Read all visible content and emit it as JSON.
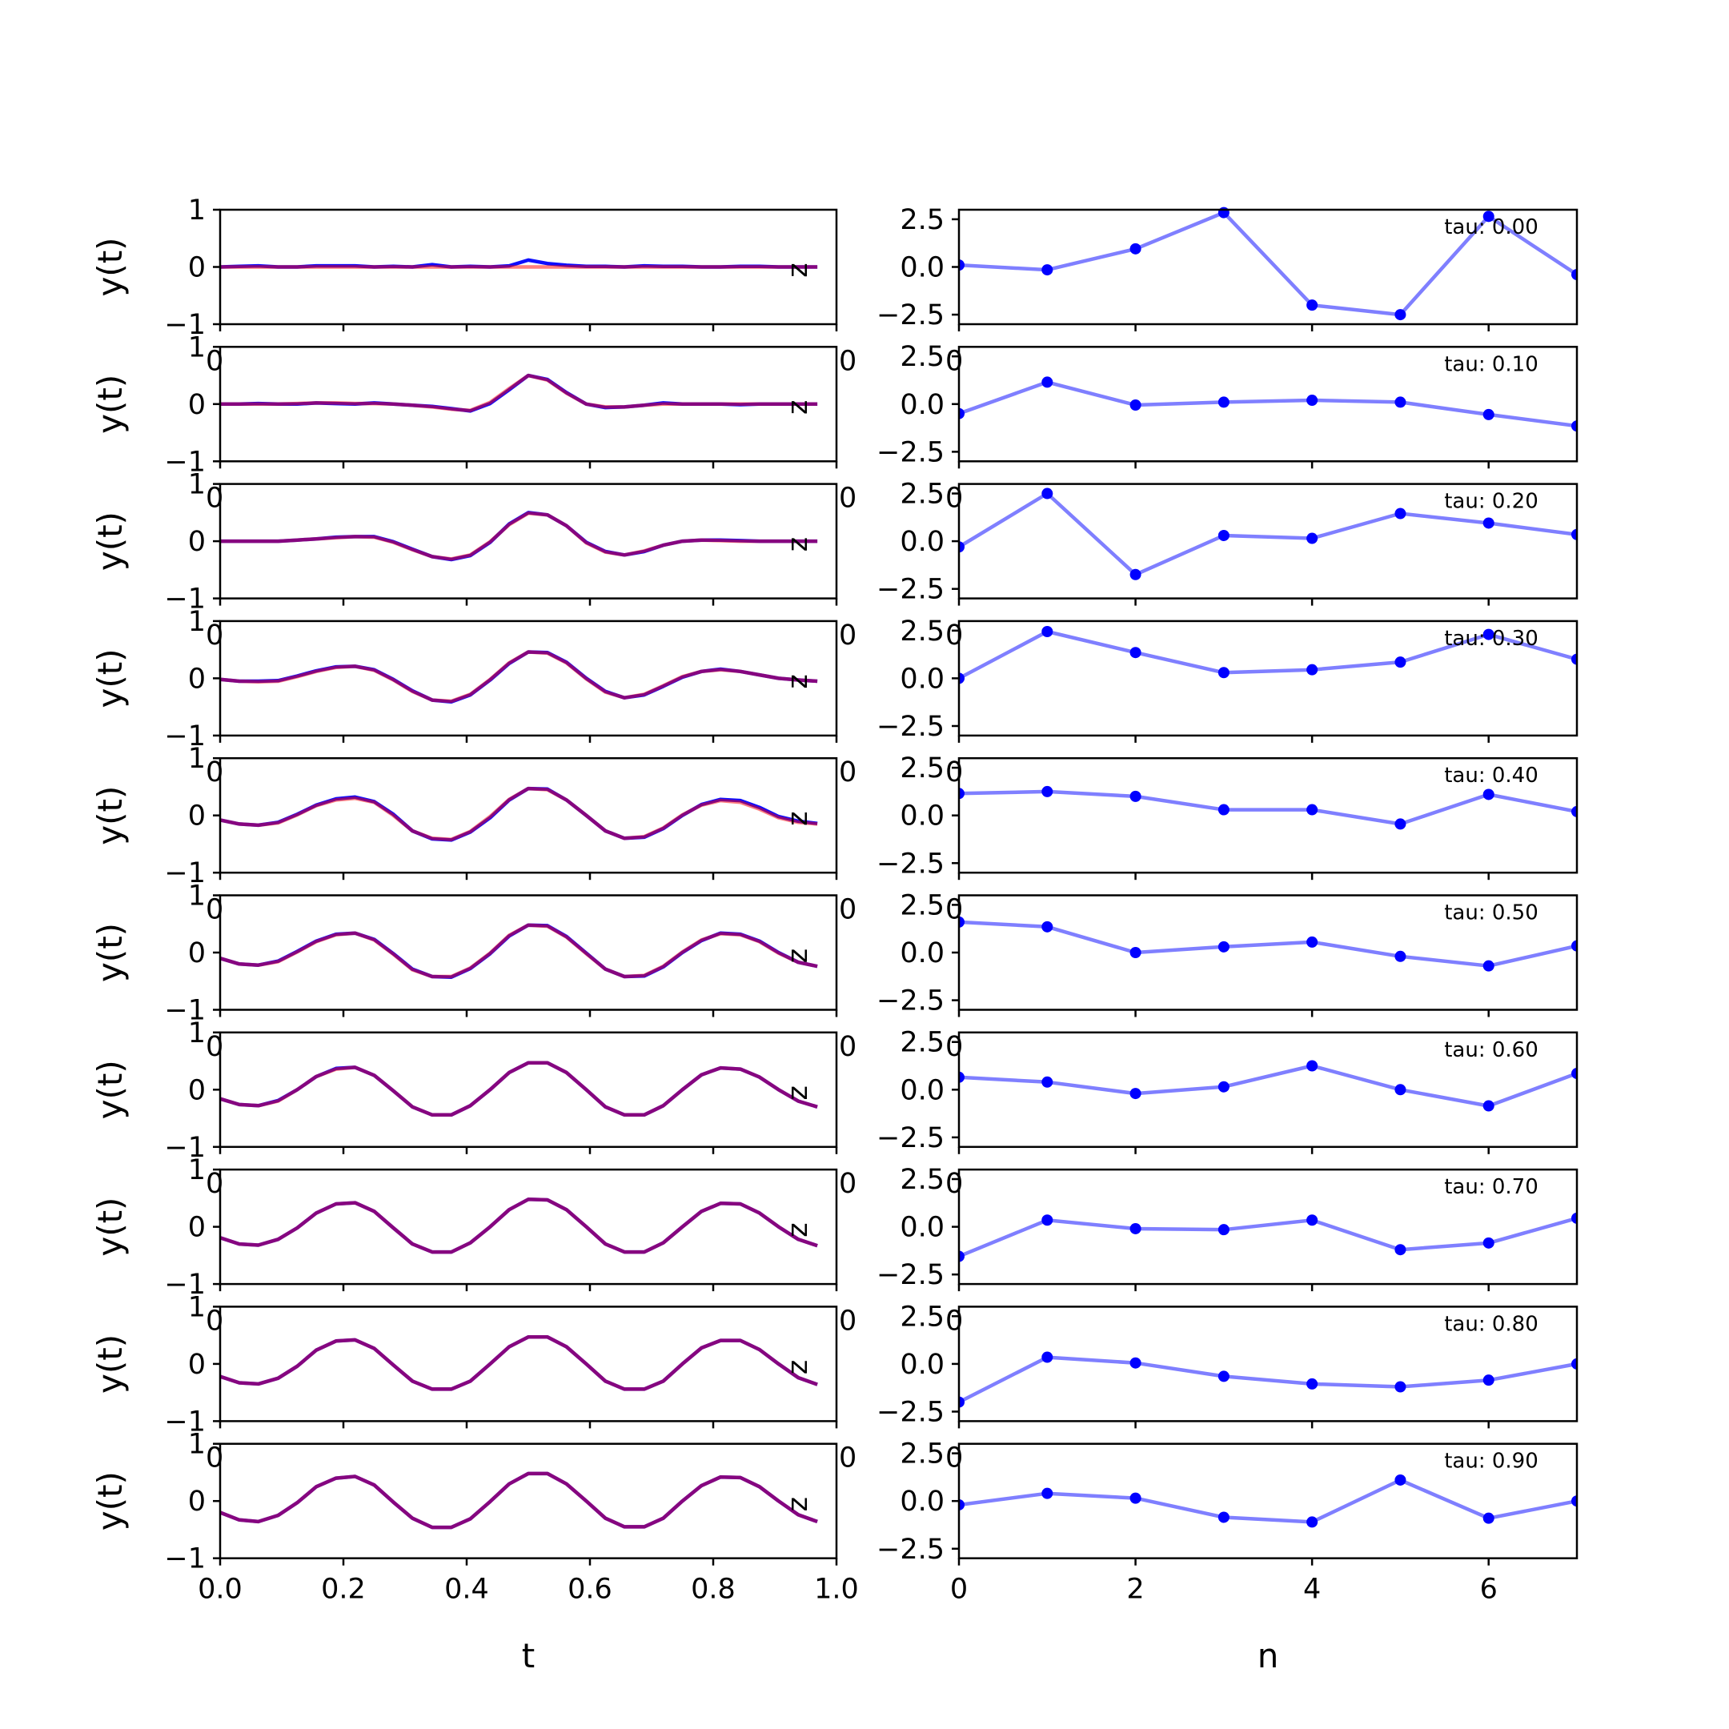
{
  "chart_data": [
    {
      "type": "line",
      "panel": "left-column",
      "xlabel": "t",
      "ylabel": "y(t)",
      "xlim": [
        0,
        1
      ],
      "ylim": [
        -1,
        1
      ],
      "xticks": [
        "0.0",
        "0.2",
        "0.4",
        "0.6",
        "0.8",
        "1.0"
      ],
      "yticks": [
        "−1",
        "0",
        "1"
      ],
      "stray_labels": [
        "0",
        "0",
        "z"
      ],
      "series_colors": [
        "#0000ff",
        "#ff0000"
      ],
      "x": [
        0.0,
        0.031,
        0.062,
        0.094,
        0.125,
        0.156,
        0.188,
        0.219,
        0.25,
        0.281,
        0.312,
        0.344,
        0.375,
        0.406,
        0.438,
        0.469,
        0.5,
        0.531,
        0.562,
        0.594,
        0.625,
        0.656,
        0.688,
        0.719,
        0.75,
        0.781,
        0.812,
        0.844,
        0.875,
        0.906,
        0.938,
        0.969
      ],
      "rows": [
        {
          "series": [
            {
              "values": [
                0.0,
                0.01,
                0.02,
                0.0,
                0.0,
                0.02,
                0.02,
                0.02,
                0.0,
                0.01,
                0.0,
                0.04,
                0.0,
                0.01,
                0.0,
                0.02,
                0.12,
                0.06,
                0.03,
                0.01,
                0.01,
                0.0,
                0.02,
                0.01,
                0.01,
                0.0,
                0.0,
                0.01,
                0.01,
                0.0,
                0.0,
                0.0
              ]
            },
            {
              "values": [
                0.0,
                0.0,
                0.0,
                0.0,
                0.0,
                0.0,
                0.0,
                0.0,
                0.0,
                0.0,
                0.0,
                0.0,
                0.0,
                0.0,
                0.0,
                0.0,
                0.0,
                0.0,
                0.0,
                0.0,
                0.0,
                0.0,
                0.0,
                0.0,
                0.0,
                0.0,
                0.0,
                0.0,
                0.0,
                0.0,
                0.0,
                0.0
              ]
            }
          ]
        },
        {
          "series": [
            {
              "values": [
                0.0,
                0.0,
                0.01,
                0.0,
                0.0,
                0.02,
                0.01,
                0.0,
                0.02,
                0.0,
                -0.02,
                -0.04,
                -0.08,
                -0.12,
                0.01,
                0.25,
                0.5,
                0.43,
                0.2,
                0.0,
                -0.06,
                -0.05,
                -0.02,
                0.02,
                0.0,
                0.0,
                0.0,
                -0.01,
                0.0,
                0.0,
                0.0,
                0.0
              ]
            },
            {
              "values": [
                0.0,
                0.0,
                0.0,
                0.0,
                0.01,
                0.02,
                0.02,
                0.01,
                0.01,
                0.0,
                -0.02,
                -0.05,
                -0.09,
                -0.11,
                0.03,
                0.27,
                0.5,
                0.42,
                0.19,
                0.0,
                -0.05,
                -0.05,
                -0.02,
                0.0,
                0.0,
                0.0,
                0.0,
                0.0,
                0.0,
                0.0,
                0.0,
                0.0
              ]
            }
          ]
        },
        {
          "series": [
            {
              "values": [
                0.0,
                0.0,
                0.0,
                0.0,
                0.02,
                0.04,
                0.07,
                0.08,
                0.08,
                -0.01,
                -0.14,
                -0.27,
                -0.32,
                -0.25,
                -0.02,
                0.3,
                0.5,
                0.46,
                0.27,
                -0.02,
                -0.18,
                -0.24,
                -0.18,
                -0.07,
                0.0,
                0.02,
                0.02,
                0.01,
                0.0,
                0.0,
                0.0,
                0.0
              ]
            },
            {
              "values": [
                0.0,
                0.0,
                0.0,
                0.0,
                0.02,
                0.04,
                0.06,
                0.08,
                0.07,
                -0.02,
                -0.15,
                -0.27,
                -0.31,
                -0.24,
                -0.01,
                0.29,
                0.49,
                0.46,
                0.27,
                -0.03,
                -0.19,
                -0.24,
                -0.17,
                -0.07,
                0.0,
                0.02,
                0.01,
                0.0,
                0.0,
                0.0,
                0.0,
                0.0
              ]
            }
          ]
        },
        {
          "series": [
            {
              "values": [
                -0.02,
                -0.05,
                -0.05,
                -0.04,
                0.04,
                0.13,
                0.2,
                0.21,
                0.15,
                -0.02,
                -0.22,
                -0.38,
                -0.41,
                -0.29,
                -0.03,
                0.26,
                0.46,
                0.45,
                0.28,
                0.0,
                -0.23,
                -0.34,
                -0.29,
                -0.14,
                0.02,
                0.12,
                0.16,
                0.12,
                0.06,
                0.0,
                -0.03,
                -0.05
              ]
            },
            {
              "values": [
                -0.02,
                -0.05,
                -0.06,
                -0.05,
                0.03,
                0.12,
                0.19,
                0.21,
                0.14,
                -0.03,
                -0.23,
                -0.38,
                -0.4,
                -0.28,
                -0.02,
                0.27,
                0.46,
                0.44,
                0.27,
                -0.01,
                -0.24,
                -0.34,
                -0.28,
                -0.13,
                0.03,
                0.12,
                0.15,
                0.12,
                0.06,
                0.0,
                -0.03,
                -0.05
              ]
            }
          ]
        },
        {
          "series": [
            {
              "values": [
                -0.08,
                -0.15,
                -0.17,
                -0.12,
                0.02,
                0.18,
                0.29,
                0.32,
                0.24,
                0.02,
                -0.27,
                -0.41,
                -0.43,
                -0.29,
                -0.04,
                0.27,
                0.47,
                0.46,
                0.27,
                0.0,
                -0.27,
                -0.4,
                -0.38,
                -0.23,
                0.0,
                0.19,
                0.28,
                0.26,
                0.14,
                -0.02,
                -0.1,
                -0.14
              ]
            },
            {
              "values": [
                -0.08,
                -0.15,
                -0.17,
                -0.13,
                0.01,
                0.17,
                0.27,
                0.3,
                0.23,
                0.0,
                -0.27,
                -0.4,
                -0.42,
                -0.28,
                -0.02,
                0.28,
                0.47,
                0.45,
                0.27,
                0.0,
                -0.27,
                -0.4,
                -0.37,
                -0.22,
                0.01,
                0.18,
                0.26,
                0.23,
                0.11,
                -0.04,
                -0.12,
                -0.15
              ]
            }
          ]
        },
        {
          "series": [
            {
              "values": [
                -0.1,
                -0.2,
                -0.22,
                -0.15,
                0.02,
                0.2,
                0.32,
                0.34,
                0.23,
                -0.02,
                -0.29,
                -0.42,
                -0.43,
                -0.28,
                -0.02,
                0.29,
                0.48,
                0.47,
                0.28,
                -0.01,
                -0.29,
                -0.42,
                -0.41,
                -0.25,
                0.0,
                0.21,
                0.34,
                0.32,
                0.2,
                0.0,
                -0.17,
                -0.24
              ]
            },
            {
              "values": [
                -0.1,
                -0.2,
                -0.22,
                -0.16,
                0.01,
                0.19,
                0.31,
                0.34,
                0.22,
                -0.03,
                -0.3,
                -0.42,
                -0.42,
                -0.27,
                -0.01,
                0.3,
                0.48,
                0.46,
                0.27,
                -0.02,
                -0.29,
                -0.42,
                -0.4,
                -0.24,
                0.01,
                0.22,
                0.33,
                0.31,
                0.19,
                -0.01,
                -0.17,
                -0.24
              ]
            }
          ]
        },
        {
          "series": [
            {
              "values": [
                -0.16,
                -0.26,
                -0.28,
                -0.19,
                0.0,
                0.23,
                0.37,
                0.39,
                0.25,
                -0.02,
                -0.3,
                -0.44,
                -0.44,
                -0.28,
                0.0,
                0.3,
                0.47,
                0.47,
                0.3,
                0.0,
                -0.3,
                -0.44,
                -0.44,
                -0.28,
                0.0,
                0.26,
                0.38,
                0.36,
                0.22,
                0.0,
                -0.2,
                -0.3
              ]
            },
            {
              "values": [
                -0.16,
                -0.26,
                -0.28,
                -0.2,
                0.0,
                0.23,
                0.36,
                0.39,
                0.25,
                -0.02,
                -0.3,
                -0.44,
                -0.44,
                -0.28,
                0.0,
                0.3,
                0.47,
                0.47,
                0.3,
                0.0,
                -0.3,
                -0.44,
                -0.44,
                -0.28,
                0.0,
                0.26,
                0.38,
                0.36,
                0.22,
                0.0,
                -0.2,
                -0.3
              ]
            }
          ]
        },
        {
          "series": [
            {
              "values": [
                -0.19,
                -0.3,
                -0.32,
                -0.22,
                -0.02,
                0.24,
                0.4,
                0.42,
                0.27,
                -0.02,
                -0.3,
                -0.44,
                -0.44,
                -0.28,
                0.0,
                0.3,
                0.48,
                0.47,
                0.3,
                0.0,
                -0.3,
                -0.44,
                -0.44,
                -0.28,
                0.0,
                0.27,
                0.41,
                0.4,
                0.24,
                0.0,
                -0.22,
                -0.33
              ]
            },
            {
              "values": [
                -0.19,
                -0.3,
                -0.32,
                -0.22,
                -0.02,
                0.24,
                0.4,
                0.42,
                0.27,
                -0.02,
                -0.3,
                -0.44,
                -0.44,
                -0.28,
                0.0,
                0.3,
                0.48,
                0.47,
                0.3,
                0.0,
                -0.3,
                -0.44,
                -0.44,
                -0.28,
                0.0,
                0.27,
                0.41,
                0.4,
                0.24,
                0.0,
                -0.22,
                -0.33
              ]
            }
          ]
        },
        {
          "series": [
            {
              "values": [
                -0.22,
                -0.33,
                -0.35,
                -0.25,
                -0.04,
                0.24,
                0.4,
                0.42,
                0.27,
                -0.02,
                -0.3,
                -0.44,
                -0.44,
                -0.3,
                0.0,
                0.3,
                0.47,
                0.47,
                0.3,
                0.0,
                -0.3,
                -0.44,
                -0.44,
                -0.3,
                0.0,
                0.28,
                0.41,
                0.41,
                0.25,
                0.0,
                -0.24,
                -0.36
              ]
            },
            {
              "values": [
                -0.22,
                -0.33,
                -0.35,
                -0.25,
                -0.04,
                0.24,
                0.4,
                0.42,
                0.27,
                -0.02,
                -0.3,
                -0.44,
                -0.44,
                -0.3,
                0.0,
                0.3,
                0.47,
                0.47,
                0.3,
                0.0,
                -0.3,
                -0.44,
                -0.44,
                -0.3,
                0.0,
                0.28,
                0.41,
                0.41,
                0.25,
                0.0,
                -0.24,
                -0.36
              ]
            }
          ]
        },
        {
          "series": [
            {
              "values": [
                -0.2,
                -0.33,
                -0.36,
                -0.25,
                -0.03,
                0.25,
                0.4,
                0.43,
                0.28,
                -0.02,
                -0.3,
                -0.46,
                -0.46,
                -0.31,
                -0.01,
                0.3,
                0.48,
                0.48,
                0.3,
                0.0,
                -0.3,
                -0.45,
                -0.45,
                -0.3,
                0.0,
                0.27,
                0.42,
                0.41,
                0.25,
                0.0,
                -0.24,
                -0.36
              ]
            },
            {
              "values": [
                -0.2,
                -0.33,
                -0.36,
                -0.25,
                -0.03,
                0.25,
                0.4,
                0.43,
                0.28,
                -0.02,
                -0.3,
                -0.46,
                -0.46,
                -0.31,
                -0.01,
                0.3,
                0.48,
                0.48,
                0.3,
                0.0,
                -0.3,
                -0.45,
                -0.45,
                -0.3,
                0.0,
                0.27,
                0.42,
                0.41,
                0.25,
                0.0,
                -0.24,
                -0.36
              ]
            }
          ]
        }
      ]
    },
    {
      "type": "line",
      "panel": "right-column",
      "xlabel": "n",
      "xlim": [
        0,
        7
      ],
      "ylim": [
        -3,
        3
      ],
      "xticks": [
        "0",
        "2",
        "4",
        "6"
      ],
      "yticks": [
        "−2.5",
        "0.0",
        "2.5"
      ],
      "stray_labels": [
        "0",
        "0"
      ],
      "line_color": "#0000ff",
      "x": [
        0,
        1,
        2,
        3,
        4,
        5,
        6,
        7
      ],
      "rows": [
        {
          "label": "tau: 0.00",
          "values": [
            0.1,
            -0.15,
            0.95,
            2.85,
            -2.0,
            -2.5,
            2.65,
            -0.4
          ]
        },
        {
          "label": "tau: 0.10",
          "values": [
            -0.5,
            1.15,
            -0.05,
            0.1,
            0.2,
            0.1,
            -0.55,
            -1.15
          ]
        },
        {
          "label": "tau: 0.20",
          "values": [
            -0.3,
            2.5,
            -1.75,
            0.3,
            0.15,
            1.45,
            0.95,
            0.35
          ]
        },
        {
          "label": "tau: 0.30",
          "values": [
            0.0,
            2.45,
            1.35,
            0.3,
            0.45,
            0.85,
            2.3,
            1.0
          ]
        },
        {
          "label": "tau: 0.40",
          "values": [
            1.15,
            1.25,
            1.0,
            0.3,
            0.3,
            -0.45,
            1.1,
            0.2
          ]
        },
        {
          "label": "tau: 0.50",
          "values": [
            1.6,
            1.35,
            0.0,
            0.3,
            0.55,
            -0.2,
            -0.7,
            0.35
          ]
        },
        {
          "label": "tau: 0.60",
          "values": [
            0.65,
            0.4,
            -0.2,
            0.15,
            1.25,
            0.0,
            -0.85,
            0.85
          ]
        },
        {
          "label": "tau: 0.70",
          "values": [
            -1.55,
            0.35,
            -0.1,
            -0.15,
            0.35,
            -1.2,
            -0.85,
            0.45
          ]
        },
        {
          "label": "tau: 0.80",
          "values": [
            -2.0,
            0.35,
            0.05,
            -0.65,
            -1.05,
            -1.2,
            -0.85,
            0.0
          ]
        },
        {
          "label": "tau: 0.90",
          "values": [
            -0.2,
            0.4,
            0.15,
            -0.85,
            -1.1,
            1.1,
            -0.9,
            0.0
          ]
        }
      ]
    }
  ]
}
